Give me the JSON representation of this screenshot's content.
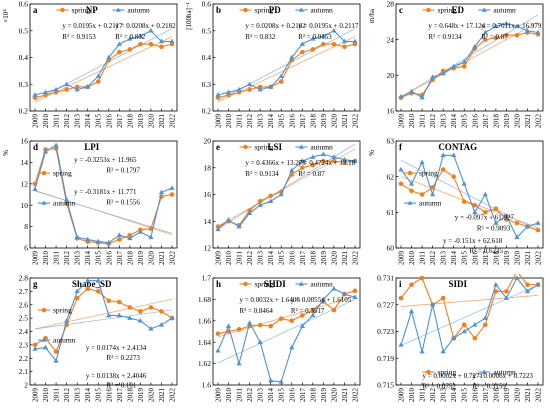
{
  "colors": {
    "spring": "#f07f1e",
    "autumn": "#4f93d6",
    "axis": "#000000",
    "fit_spring": "#f0a060",
    "fit_autumn": "#8ab8e6"
  },
  "legend": {
    "spring": "spring",
    "autumn": "autumn"
  },
  "years": [
    "2009",
    "2010",
    "2011",
    "2012",
    "2013",
    "2014",
    "2015",
    "2016",
    "2017",
    "2018",
    "2019",
    "2020",
    "2021",
    "2022"
  ],
  "chart_data": [
    {
      "type": "line",
      "panel": "a",
      "title": "NP",
      "ylabel": "×10⁴",
      "ylim": [
        0.2,
        0.6
      ],
      "yticks": [
        "0.2",
        "0.3",
        "0.4",
        "0.5",
        "0.6"
      ],
      "ytick_values": [
        0.2,
        0.3,
        0.4,
        0.5,
        0.6
      ],
      "legend_pos": "top",
      "series": [
        {
          "name": "spring",
          "values": [
            0.25,
            0.26,
            0.27,
            0.28,
            0.29,
            0.29,
            0.31,
            0.39,
            0.42,
            0.43,
            0.45,
            0.45,
            0.44,
            0.45
          ]
        },
        {
          "name": "autumn",
          "values": [
            0.26,
            0.27,
            0.28,
            0.3,
            0.28,
            0.29,
            0.33,
            0.4,
            0.45,
            0.47,
            0.48,
            0.5,
            0.46,
            0.46
          ]
        }
      ],
      "equations": [
        {
          "text": "y = 0.0195x + 0.2117",
          "series": "spring"
        },
        {
          "text": "y = 0.0208x + 0.2182",
          "series": "autumn"
        },
        {
          "text": "R² = 0.9153",
          "series": "spring"
        },
        {
          "text": "R² = 0.832",
          "series": "autumn"
        }
      ]
    },
    {
      "type": "line",
      "panel": "b",
      "title": "PD",
      "ylabel": "[100ha]⁻¹",
      "ylim": [
        0.2,
        0.6
      ],
      "yticks": [
        "0.2",
        "0.3",
        "0.4",
        "0.5",
        "0.6"
      ],
      "ytick_values": [
        0.2,
        0.3,
        0.4,
        0.5,
        0.6
      ],
      "legend_pos": "top",
      "series": [
        {
          "name": "spring",
          "values": [
            0.25,
            0.26,
            0.27,
            0.28,
            0.29,
            0.29,
            0.31,
            0.39,
            0.42,
            0.43,
            0.45,
            0.45,
            0.44,
            0.45
          ]
        },
        {
          "name": "autumn",
          "values": [
            0.26,
            0.27,
            0.28,
            0.3,
            0.28,
            0.29,
            0.33,
            0.4,
            0.45,
            0.47,
            0.48,
            0.5,
            0.46,
            0.46
          ]
        }
      ],
      "equations": [
        {
          "text": "y = 0.0208x + 0.2182",
          "series": "autumn"
        },
        {
          "text": "y = 0.0195x + 0.2117",
          "series": "spring"
        },
        {
          "text": "R² = 0.832",
          "series": "autumn"
        },
        {
          "text": "R² = 0.9153",
          "series": "spring"
        }
      ]
    },
    {
      "type": "line",
      "panel": "c",
      "title": "ED",
      "ylabel": "m/ha",
      "ylim": [
        16,
        28
      ],
      "yticks": [
        "16",
        "20",
        "24",
        "28"
      ],
      "ytick_values": [
        16,
        20,
        24,
        28
      ],
      "legend_pos": "top",
      "series": [
        {
          "name": "spring",
          "values": [
            17.5,
            18.0,
            17.8,
            19.5,
            20.5,
            20.8,
            21.0,
            23.0,
            24.0,
            24.2,
            24.5,
            24.5,
            24.8,
            24.6
          ]
        },
        {
          "name": "autumn",
          "values": [
            17.6,
            18.2,
            17.5,
            19.8,
            20.2,
            21.0,
            21.5,
            23.2,
            24.8,
            25.5,
            25.8,
            25.5,
            25.0,
            24.8
          ]
        }
      ],
      "equations": [
        {
          "text": "y = 0.648x + 17.124",
          "series": "spring"
        },
        {
          "text": "y = 0.7011x + 16.979",
          "series": "autumn"
        },
        {
          "text": "R² = 0.9134",
          "series": "spring"
        },
        {
          "text": "R² = 0.87",
          "series": "autumn"
        }
      ]
    },
    {
      "type": "line",
      "panel": "d",
      "title": "LPI",
      "ylabel": "%",
      "ylim": [
        6,
        16
      ],
      "yticks": [
        "6",
        "8",
        "10",
        "12",
        "14",
        "16"
      ],
      "ytick_values": [
        6,
        8,
        10,
        12,
        14,
        16
      ],
      "legend_pos": "left",
      "series": [
        {
          "name": "spring",
          "values": [
            12.0,
            15.2,
            15.3,
            10.2,
            6.9,
            6.6,
            6.5,
            6.4,
            6.8,
            7.2,
            7.7,
            7.8,
            10.8,
            11.0
          ]
        },
        {
          "name": "autumn",
          "values": [
            11.5,
            15.0,
            15.6,
            10.5,
            7.0,
            6.8,
            6.6,
            6.5,
            7.2,
            6.9,
            7.5,
            7.0,
            11.2,
            11.6
          ]
        }
      ],
      "equations": [
        {
          "text": "y = -0.3253x + 11.965",
          "series": "spring"
        },
        {
          "text": "R² = 0.1797",
          "series": "spring"
        },
        {
          "text": "y = -0.3181x + 11.771",
          "series": "autumn"
        },
        {
          "text": "R² = 0.1556",
          "series": "autumn"
        }
      ]
    },
    {
      "type": "line",
      "panel": "e",
      "title": "LSI",
      "ylim": [
        12,
        20
      ],
      "yticks": [
        "12",
        "14",
        "16",
        "18",
        "20"
      ],
      "ytick_values": [
        12,
        14,
        16,
        18,
        20
      ],
      "legend_pos": "top",
      "series": [
        {
          "name": "spring",
          "values": [
            13.6,
            14.0,
            13.7,
            14.8,
            15.5,
            15.9,
            16.2,
            17.5,
            18.0,
            18.2,
            18.5,
            18.5,
            18.4,
            18.5
          ]
        },
        {
          "name": "autumn",
          "values": [
            13.4,
            14.1,
            13.6,
            14.6,
            15.2,
            15.5,
            16.0,
            17.8,
            18.5,
            18.8,
            19.0,
            18.8,
            18.6,
            18.5
          ]
        }
      ],
      "equations": [
        {
          "text": "y = 0.4366x + 13.278",
          "series": "spring"
        },
        {
          "text": "y = 0.4724x + 13.18",
          "series": "autumn"
        },
        {
          "text": "R² = 0.9134",
          "series": "spring"
        },
        {
          "text": "R² = 0.87",
          "series": "autumn"
        }
      ]
    },
    {
      "type": "line",
      "panel": "f",
      "title": "CONTAG",
      "ylabel": "%",
      "ylim": [
        60,
        63
      ],
      "yticks": [
        "60",
        "61",
        "62",
        "63"
      ],
      "ytick_values": [
        60,
        61,
        62,
        63
      ],
      "legend_pos": "left",
      "series": [
        {
          "name": "spring",
          "values": [
            61.8,
            61.6,
            61.5,
            61.7,
            62.2,
            62.0,
            61.3,
            61.2,
            61.0,
            61.1,
            60.8,
            60.7,
            60.6,
            60.5
          ]
        },
        {
          "name": "autumn",
          "values": [
            62.2,
            61.8,
            62.4,
            61.5,
            62.6,
            62.6,
            61.8,
            61.0,
            61.5,
            60.7,
            60.9,
            60.3,
            60.6,
            60.7
          ]
        }
      ],
      "equations": [
        {
          "text": "y = -0.097x + 61.927",
          "series": "spring"
        },
        {
          "text": "R² = 0.9093",
          "series": "spring"
        },
        {
          "text": "y = -0.151x + 62.618",
          "series": "autumn"
        },
        {
          "text": "R² = 0.6235",
          "series": "autumn"
        }
      ]
    },
    {
      "type": "line",
      "panel": "g",
      "title": "Shape_SD",
      "ylim": [
        2,
        2.8
      ],
      "yticks": [
        "2",
        "2.1",
        "2.2",
        "2.3",
        "2.4",
        "2.5",
        "2.6",
        "2.7",
        "2.8"
      ],
      "ytick_values": [
        2,
        2.1,
        2.2,
        2.3,
        2.4,
        2.5,
        2.6,
        2.7,
        2.8
      ],
      "legend_pos": "left",
      "series": [
        {
          "name": "spring",
          "values": [
            2.3,
            2.35,
            2.25,
            2.45,
            2.65,
            2.72,
            2.7,
            2.63,
            2.62,
            2.58,
            2.55,
            2.58,
            2.55,
            2.5
          ]
        },
        {
          "name": "autumn",
          "values": [
            2.27,
            2.28,
            2.18,
            2.48,
            2.7,
            2.78,
            2.78,
            2.52,
            2.52,
            2.5,
            2.48,
            2.42,
            2.45,
            2.5
          ]
        }
      ],
      "equations": [
        {
          "text": "y = 0.0174x + 2.4134",
          "series": "spring"
        },
        {
          "text": "R² = 0.2273",
          "series": "spring"
        },
        {
          "text": "y = 0.0138x + 2.4046",
          "series": "autumn"
        },
        {
          "text": "R² = 0.101",
          "series": "autumn"
        }
      ]
    },
    {
      "type": "line",
      "panel": "h",
      "title": "SHDI",
      "ylim": [
        1.6,
        1.7
      ],
      "yticks": [
        "1.6",
        "1.62",
        "1.64",
        "1.66",
        "1.68",
        "1.7"
      ],
      "ytick_values": [
        1.6,
        1.62,
        1.64,
        1.66,
        1.68,
        1.7
      ],
      "legend_pos": "top",
      "series": [
        {
          "name": "spring",
          "values": [
            1.648,
            1.65,
            1.652,
            1.655,
            1.656,
            1.655,
            1.662,
            1.66,
            1.665,
            1.67,
            1.678,
            1.67,
            1.685,
            1.688
          ]
        },
        {
          "name": "autumn",
          "values": [
            1.632,
            1.655,
            1.62,
            1.658,
            1.64,
            1.604,
            1.603,
            1.635,
            1.655,
            1.665,
            1.68,
            1.69,
            1.685,
            1.682
          ]
        }
      ],
      "equations": [
        {
          "text": "y = 0.0032x + 1.6406",
          "series": "spring"
        },
        {
          "text": "y = 0.0055x + 1.6105",
          "series": "autumn"
        },
        {
          "text": "R² = 0.8464",
          "series": "spring"
        },
        {
          "text": "R² = 0.3517",
          "series": "autumn"
        }
      ]
    },
    {
      "type": "line",
      "panel": "i",
      "title": "SIDI",
      "ylim": [
        0.715,
        0.731
      ],
      "yticks": [
        "0.715",
        "0.719",
        "0.723",
        "0.727",
        "0.731"
      ],
      "ytick_values": [
        0.715,
        0.719,
        0.723,
        0.727,
        0.731
      ],
      "legend_pos": "bottom",
      "series": [
        {
          "name": "spring",
          "values": [
            0.728,
            0.73,
            0.731,
            0.727,
            0.728,
            0.722,
            0.724,
            0.722,
            0.724,
            0.729,
            0.729,
            0.732,
            0.73,
            0.73
          ]
        },
        {
          "name": "autumn",
          "values": [
            0.721,
            0.726,
            0.72,
            0.727,
            0.72,
            0.722,
            0.723,
            0.724,
            0.725,
            0.73,
            0.728,
            0.731,
            0.729,
            0.73
          ]
        }
      ],
      "equations": [
        {
          "text": "y = 0.0002x + 0.7271",
          "series": "spring"
        },
        {
          "text": "y = 0.0006x + 0.7223",
          "series": "autumn"
        },
        {
          "text": "R² = 0.0752",
          "series": "spring"
        },
        {
          "text": "R² = 0.3159",
          "series": "autumn"
        }
      ]
    }
  ]
}
